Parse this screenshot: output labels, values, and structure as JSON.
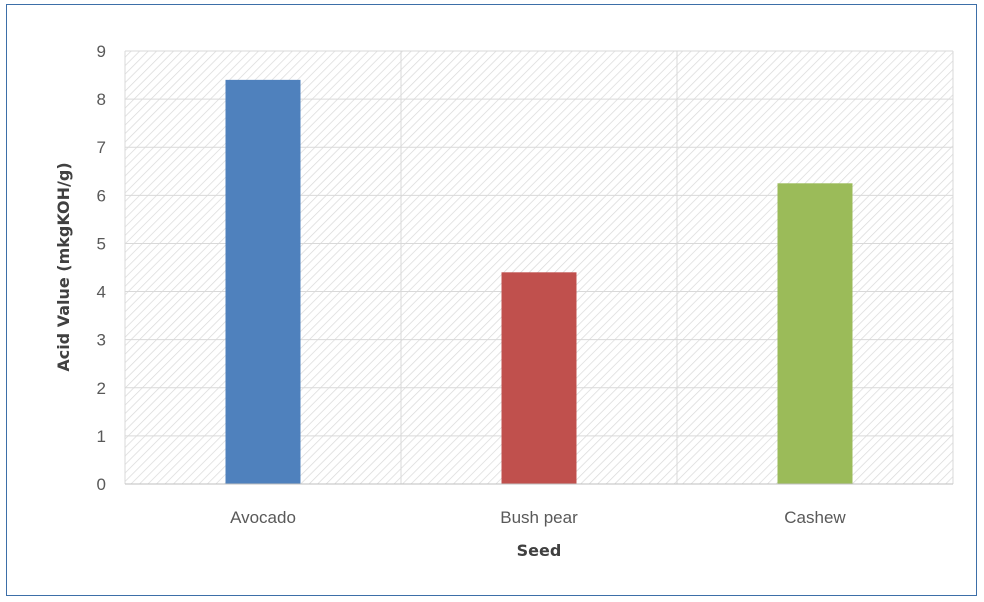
{
  "chart_data": {
    "type": "bar",
    "categories": [
      "Avocado",
      "Bush pear",
      "Cashew"
    ],
    "values": [
      8.4,
      4.4,
      6.25
    ],
    "colors": [
      "#4f81bd",
      "#c0504d",
      "#9bbb59"
    ],
    "xlabel": "Seed",
    "ylabel": "Acid Value (mkgKOH/g)",
    "ylim": [
      0,
      9
    ],
    "yticks": [
      "0",
      "1",
      "2",
      "3",
      "4",
      "5",
      "6",
      "7",
      "8",
      "9"
    ],
    "grid": true,
    "legend": "none"
  }
}
